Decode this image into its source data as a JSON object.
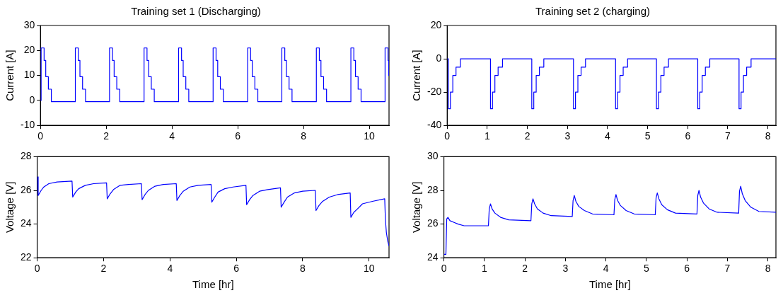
{
  "chart_data": [
    {
      "type": "line",
      "title": "Training set 1 (Discharging)",
      "ylabel": "Current [A]",
      "xlim": [
        0,
        10.6
      ],
      "xticks": [
        0,
        2,
        4,
        6,
        8,
        10
      ],
      "ylim": [
        -10,
        30
      ],
      "yticks": [
        -10,
        0,
        10,
        20,
        30
      ],
      "line_style": "solid",
      "x": [
        0,
        0.02,
        0.02,
        0.11,
        0.11,
        0.16,
        0.16,
        0.24,
        0.24,
        0.33,
        0.33,
        1.06,
        1.06,
        1.15,
        1.15,
        1.2,
        1.2,
        1.28,
        1.28,
        1.37,
        1.37,
        2.1,
        2.1,
        2.19,
        2.19,
        2.24,
        2.24,
        2.32,
        2.32,
        2.41,
        2.41,
        3.15,
        3.15,
        3.24,
        3.24,
        3.29,
        3.29,
        3.37,
        3.37,
        3.46,
        3.46,
        4.2,
        4.2,
        4.29,
        4.29,
        4.34,
        4.34,
        4.42,
        4.42,
        4.51,
        4.51,
        5.25,
        5.25,
        5.34,
        5.34,
        5.39,
        5.39,
        5.47,
        5.47,
        5.56,
        5.56,
        6.3,
        6.3,
        6.39,
        6.39,
        6.44,
        6.44,
        6.52,
        6.52,
        6.61,
        6.61,
        7.34,
        7.34,
        7.43,
        7.43,
        7.48,
        7.48,
        7.56,
        7.56,
        7.65,
        7.65,
        8.39,
        8.39,
        8.48,
        8.48,
        8.53,
        8.53,
        8.61,
        8.61,
        8.7,
        8.7,
        9.44,
        9.44,
        9.53,
        9.53,
        9.58,
        9.58,
        9.66,
        9.66,
        9.75,
        9.75,
        10.48,
        10.48,
        10.57,
        10.57,
        10.59,
        10.59,
        10.6
      ],
      "series": [
        {
          "color": "#0000ff",
          "values": [
            0,
            0,
            21,
            21,
            16,
            16,
            9.5,
            9.5,
            4.5,
            4.5,
            -0.5,
            -0.5,
            21,
            21,
            16,
            16,
            9.5,
            9.5,
            4.5,
            4.5,
            -0.5,
            -0.5,
            21,
            21,
            16,
            16,
            9.5,
            9.5,
            4.5,
            4.5,
            -0.5,
            -0.5,
            21,
            21,
            16,
            16,
            9.5,
            9.5,
            4.5,
            4.5,
            -0.5,
            -0.5,
            21,
            21,
            16,
            16,
            9.5,
            9.5,
            4.5,
            4.5,
            -0.5,
            -0.5,
            21,
            21,
            16,
            16,
            9.5,
            9.5,
            4.5,
            4.5,
            -0.5,
            -0.5,
            21,
            21,
            16,
            16,
            9.5,
            9.5,
            4.5,
            4.5,
            -0.5,
            -0.5,
            21,
            21,
            16,
            16,
            9.5,
            9.5,
            4.5,
            4.5,
            -0.5,
            -0.5,
            21,
            21,
            16,
            16,
            9.5,
            9.5,
            4.5,
            4.5,
            -0.5,
            -0.5,
            21,
            21,
            16,
            16,
            9.5,
            9.5,
            4.5,
            4.5,
            -0.5,
            -0.5,
            21,
            21,
            16,
            16,
            10,
            10
          ]
        }
      ]
    },
    {
      "type": "line",
      "title": "Training set 2 (charging)",
      "ylabel": "Current [A]",
      "xlim": [
        0,
        8.2
      ],
      "xticks": [
        0,
        1,
        2,
        3,
        4,
        5,
        6,
        7,
        8
      ],
      "ylim": [
        -40,
        20
      ],
      "yticks": [
        -40,
        -20,
        0,
        20
      ],
      "line_style": "solid",
      "x": [
        0,
        0.03,
        0.03,
        0.08,
        0.08,
        0.14,
        0.14,
        0.22,
        0.22,
        0.33,
        0.33,
        1.08,
        1.08,
        1.13,
        1.13,
        1.19,
        1.19,
        1.27,
        1.27,
        1.38,
        1.38,
        2.11,
        2.11,
        2.16,
        2.16,
        2.22,
        2.22,
        2.3,
        2.3,
        2.41,
        2.41,
        3.15,
        3.15,
        3.2,
        3.2,
        3.26,
        3.26,
        3.34,
        3.34,
        3.45,
        3.45,
        4.2,
        4.2,
        4.25,
        4.25,
        4.31,
        4.31,
        4.39,
        4.39,
        4.5,
        4.5,
        5.22,
        5.22,
        5.27,
        5.27,
        5.33,
        5.33,
        5.41,
        5.41,
        5.52,
        5.52,
        6.25,
        6.25,
        6.3,
        6.3,
        6.36,
        6.36,
        6.44,
        6.44,
        6.55,
        6.55,
        7.28,
        7.28,
        7.33,
        7.33,
        7.39,
        7.39,
        7.47,
        7.47,
        7.58,
        7.58,
        8.2
      ],
      "series": [
        {
          "color": "#0000ff",
          "values": [
            0,
            0,
            -30,
            -30,
            -20,
            -20,
            -10,
            -10,
            -5,
            -5,
            0,
            0,
            -30,
            -30,
            -20,
            -20,
            -10,
            -10,
            -5,
            -5,
            0,
            0,
            -30,
            -30,
            -20,
            -20,
            -10,
            -10,
            -5,
            -5,
            0,
            0,
            -30,
            -30,
            -20,
            -20,
            -10,
            -10,
            -5,
            -5,
            0,
            0,
            -30,
            -30,
            -20,
            -20,
            -10,
            -10,
            -5,
            -5,
            0,
            0,
            -30,
            -30,
            -20,
            -20,
            -10,
            -10,
            -5,
            -5,
            0,
            0,
            -30,
            -30,
            -20,
            -20,
            -10,
            -10,
            -5,
            -5,
            0,
            0,
            -30,
            -30,
            -20,
            -20,
            -10,
            -10,
            -5,
            -5,
            0,
            0
          ]
        }
      ]
    },
    {
      "type": "line",
      "xlabel": "Time [hr]",
      "ylabel": "Voltage [V]",
      "xlim": [
        0,
        10.6
      ],
      "xticks": [
        0,
        2,
        4,
        6,
        8,
        10
      ],
      "ylim": [
        22,
        28
      ],
      "yticks": [
        22,
        24,
        26,
        28
      ],
      "line_style": "solid",
      "x": [
        0.01,
        0.03,
        0.12,
        0.2,
        0.35,
        0.6,
        1.05,
        1.07,
        1.16,
        1.25,
        1.45,
        1.7,
        2.09,
        2.11,
        2.2,
        2.3,
        2.5,
        2.75,
        3.14,
        3.16,
        3.25,
        3.35,
        3.55,
        3.8,
        4.19,
        4.21,
        4.3,
        4.4,
        4.6,
        4.85,
        5.24,
        5.26,
        5.35,
        5.45,
        5.65,
        5.9,
        6.29,
        6.31,
        6.4,
        6.5,
        6.7,
        6.95,
        7.33,
        7.35,
        7.44,
        7.54,
        7.75,
        8.0,
        8.38,
        8.4,
        8.49,
        8.6,
        8.8,
        9.05,
        9.43,
        9.45,
        9.54,
        9.65,
        9.8,
        10.1,
        10.47,
        10.49,
        10.52,
        10.56,
        10.6
      ],
      "series": [
        {
          "color": "#0000ff",
          "values": [
            26.8,
            25.7,
            26.0,
            26.2,
            26.4,
            26.5,
            26.55,
            25.6,
            25.9,
            26.1,
            26.3,
            26.4,
            26.45,
            25.5,
            25.8,
            26.05,
            26.3,
            26.35,
            26.4,
            25.45,
            25.75,
            26.0,
            26.25,
            26.35,
            26.4,
            25.4,
            25.7,
            25.95,
            26.2,
            26.3,
            26.35,
            25.3,
            25.6,
            25.9,
            26.1,
            26.2,
            26.3,
            25.15,
            25.45,
            25.7,
            25.95,
            26.05,
            26.15,
            25.0,
            25.3,
            25.6,
            25.85,
            25.95,
            26.0,
            24.8,
            25.1,
            25.35,
            25.6,
            25.75,
            25.85,
            24.4,
            24.7,
            24.9,
            25.2,
            25.35,
            25.5,
            24.3,
            23.5,
            23.0,
            22.7
          ]
        }
      ]
    },
    {
      "type": "line",
      "xlabel": "Time [hr]",
      "ylabel": "Voltage [V]",
      "xlim": [
        0,
        8.2
      ],
      "xticks": [
        0,
        1,
        2,
        3,
        4,
        5,
        6,
        7,
        8
      ],
      "ylim": [
        24,
        30
      ],
      "yticks": [
        24,
        26,
        28,
        30
      ],
      "line_style": "solid",
      "x": [
        0,
        0.05,
        0.07,
        0.1,
        0.15,
        0.25,
        0.35,
        0.5,
        1.1,
        1.12,
        1.15,
        1.19,
        1.26,
        1.4,
        1.6,
        2.15,
        2.17,
        2.2,
        2.24,
        2.31,
        2.45,
        2.65,
        3.17,
        3.19,
        3.22,
        3.26,
        3.33,
        3.47,
        3.67,
        4.2,
        4.22,
        4.25,
        4.29,
        4.36,
        4.5,
        4.7,
        5.22,
        5.24,
        5.27,
        5.31,
        5.38,
        5.52,
        5.72,
        6.25,
        6.27,
        6.3,
        6.34,
        6.41,
        6.55,
        6.75,
        7.28,
        7.3,
        7.33,
        7.37,
        7.44,
        7.58,
        7.78,
        8.2
      ],
      "series": [
        {
          "color": "#0000ff",
          "values": [
            24.2,
            24.2,
            26.3,
            26.4,
            26.2,
            26.1,
            26.0,
            25.9,
            25.9,
            26.9,
            27.2,
            26.9,
            26.65,
            26.4,
            26.25,
            26.2,
            27.2,
            27.5,
            27.2,
            26.9,
            26.65,
            26.5,
            26.45,
            27.4,
            27.7,
            27.35,
            27.05,
            26.8,
            26.6,
            26.55,
            27.45,
            27.75,
            27.4,
            27.1,
            26.8,
            26.6,
            26.55,
            27.55,
            27.85,
            27.5,
            27.15,
            26.85,
            26.65,
            26.6,
            27.7,
            28.0,
            27.6,
            27.25,
            26.9,
            26.7,
            26.65,
            27.95,
            28.25,
            27.8,
            27.4,
            27.0,
            26.75,
            26.7
          ]
        }
      ]
    }
  ]
}
